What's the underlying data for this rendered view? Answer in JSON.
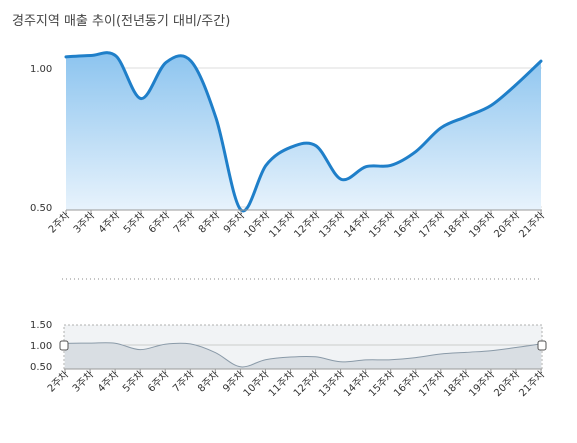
{
  "title": "경주지역 매출 추이(전년동기 대비/주간)",
  "colors": {
    "line": "#1f7fc9",
    "area_top": "#8cc4ef",
    "area_bottom": "#e8f3fc",
    "nav_line": "#8a9aa8",
    "nav_fill": "#d9dee3"
  },
  "chart_data": {
    "type": "area",
    "title": "경주지역 매출 추이(전년동기 대비/주간)",
    "categories": [
      "2주차",
      "3주차",
      "4주차",
      "5주차",
      "6주차",
      "7주차",
      "8주차",
      "9주차",
      "10주차",
      "11주차",
      "12주차",
      "13주차",
      "14주차",
      "15주차",
      "16주차",
      "17주차",
      "18주차",
      "19주차",
      "20주차",
      "21주차"
    ],
    "values": [
      1.04,
      1.045,
      1.043,
      0.89,
      1.02,
      1.025,
      0.82,
      0.48,
      0.65,
      0.715,
      0.72,
      0.6,
      0.645,
      0.65,
      0.7,
      0.785,
      0.825,
      0.865,
      0.94,
      1.025
    ],
    "main_ylim": [
      0.5,
      1.0
    ],
    "main_yticks": [
      "1.00",
      "0.50"
    ],
    "navigator_ylim": [
      0.5,
      1.5
    ],
    "navigator_yticks": [
      "1.50",
      "1.00",
      "0.50"
    ],
    "grid": true
  }
}
